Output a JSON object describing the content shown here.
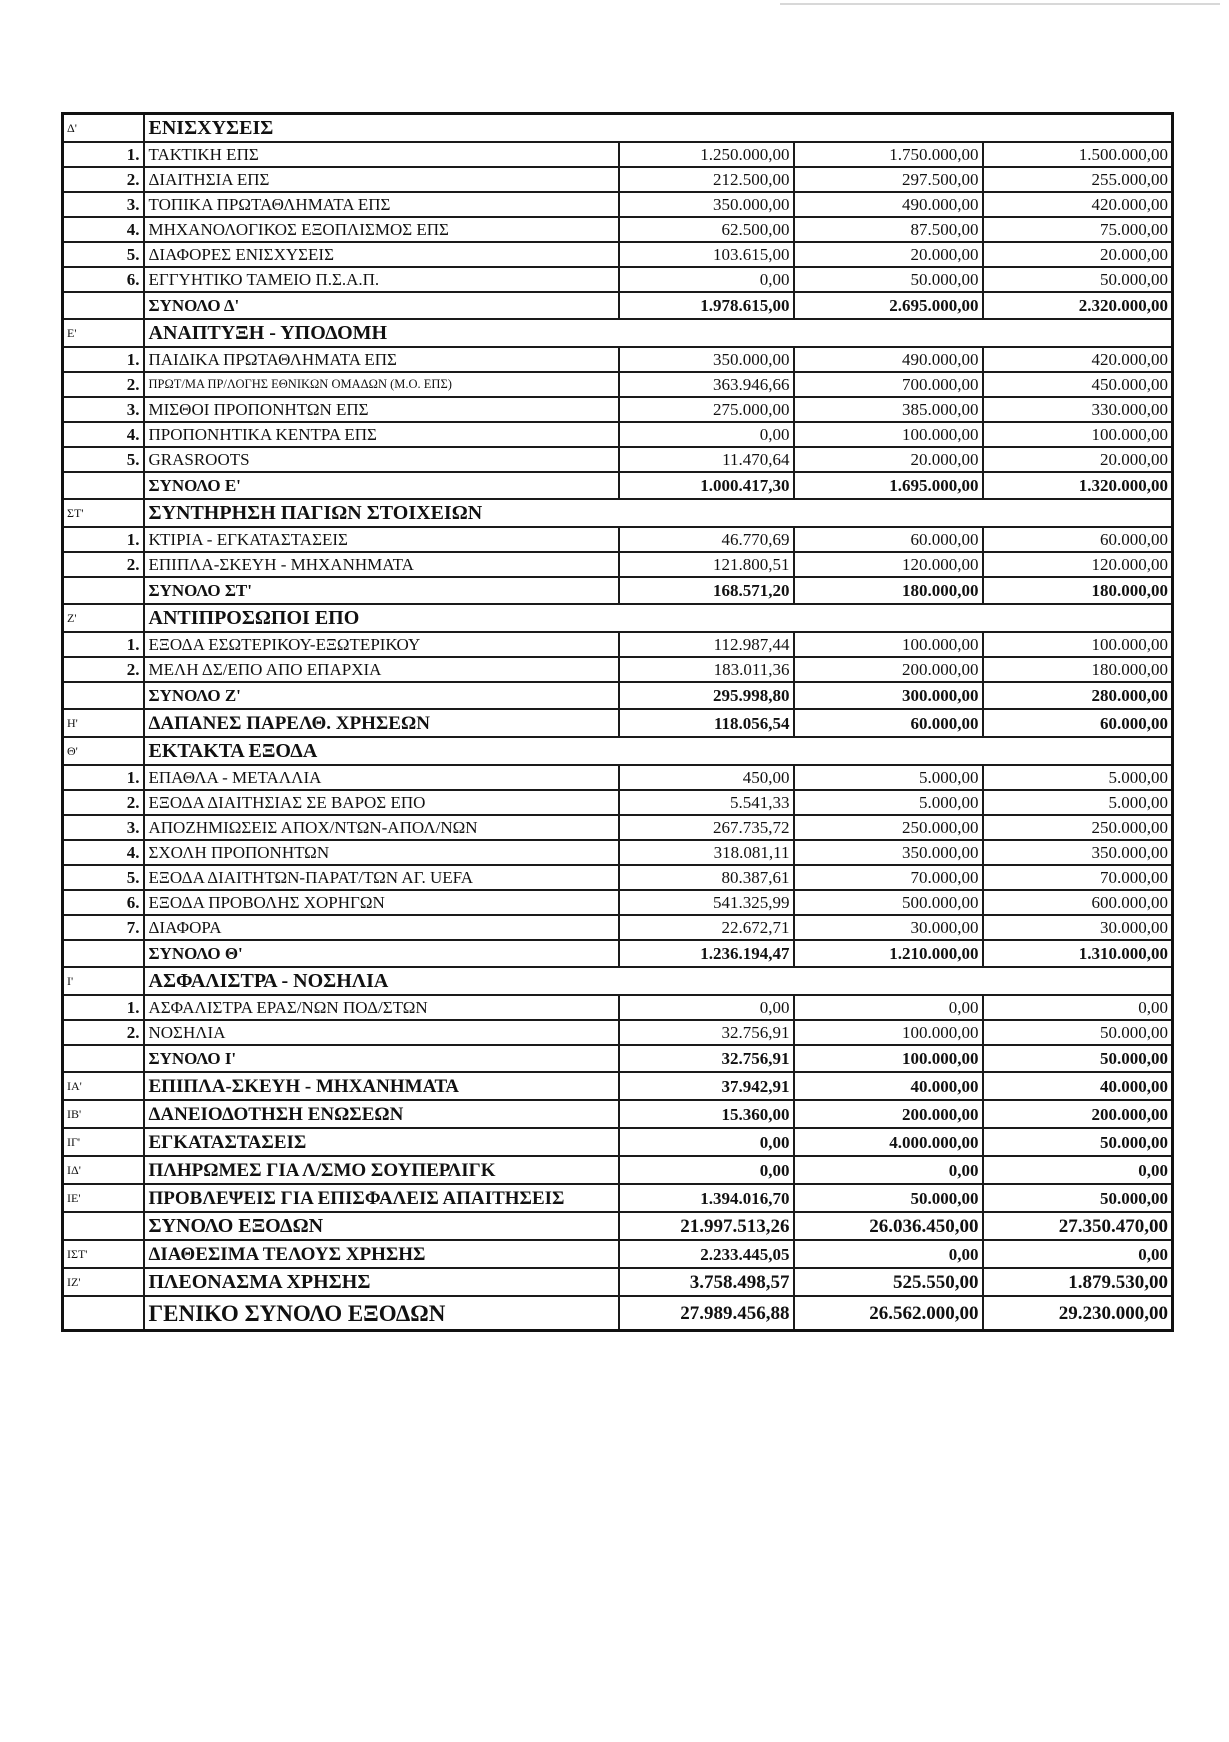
{
  "rows": [
    {
      "type": "header",
      "code": "Δ'",
      "label": "ΕΝΙΣΧΥΣΕΙΣ"
    },
    {
      "type": "item",
      "num": "1.",
      "label": "ΤΑΚΤΙΚΗ ΕΠΣ",
      "values": [
        "1.250.000,00",
        "1.750.000,00",
        "1.500.000,00"
      ]
    },
    {
      "type": "item",
      "num": "2.",
      "label": "ΔΙΑΙΤΗΣΙΑ ΕΠΣ",
      "values": [
        "212.500,00",
        "297.500,00",
        "255.000,00"
      ]
    },
    {
      "type": "item",
      "num": "3.",
      "label": "ΤΟΠΙΚΑ ΠΡΩΤΑΘΛΗΜΑΤΑ ΕΠΣ",
      "values": [
        "350.000,00",
        "490.000,00",
        "420.000,00"
      ]
    },
    {
      "type": "item",
      "num": "4.",
      "label": "ΜΗΧΑΝΟΛΟΓΙΚΟΣ ΕΞΟΠΛΙΣΜΟΣ ΕΠΣ",
      "values": [
        "62.500,00",
        "87.500,00",
        "75.000,00"
      ]
    },
    {
      "type": "item",
      "num": "5.",
      "label": "ΔΙΑΦΟΡΕΣ ΕΝΙΣΧΥΣΕΙΣ",
      "values": [
        "103.615,00",
        "20.000,00",
        "20.000,00"
      ]
    },
    {
      "type": "item",
      "num": "6.",
      "label": "ΕΓΓΥΗΤΙΚΟ ΤΑΜΕΙΟ Π.Σ.Α.Π.",
      "values": [
        "0,00",
        "50.000,00",
        "50.000,00"
      ]
    },
    {
      "type": "total",
      "label": "ΣΥΝΟΛΟ Δ'",
      "values": [
        "1.978.615,00",
        "2.695.000,00",
        "2.320.000,00"
      ]
    },
    {
      "type": "header",
      "code": "Ε'",
      "label": "ΑΝΑΠΤΥΞΗ - ΥΠΟΔΟΜΗ"
    },
    {
      "type": "item",
      "num": "1.",
      "label": "ΠΑΙΔΙΚΑ ΠΡΩΤΑΘΛΗΜΑΤΑ ΕΠΣ",
      "values": [
        "350.000,00",
        "490.000,00",
        "420.000,00"
      ]
    },
    {
      "type": "item",
      "num": "2.",
      "label": "ΠΡΩΤ/ΜΑ ΠΡ/ΛΟΓΗΣ ΕΘΝΙΚΩΝ ΟΜΑΔΩΝ (Μ.Ο. ΕΠΣ)",
      "small": true,
      "values": [
        "363.946,66",
        "700.000,00",
        "450.000,00"
      ]
    },
    {
      "type": "item",
      "num": "3.",
      "label": "ΜΙΣΘΟΙ ΠΡΟΠΟΝΗΤΩΝ ΕΠΣ",
      "values": [
        "275.000,00",
        "385.000,00",
        "330.000,00"
      ]
    },
    {
      "type": "item",
      "num": "4.",
      "label": "ΠΡΟΠΟΝΗΤΙΚΑ ΚΕΝΤΡΑ ΕΠΣ",
      "values": [
        "0,00",
        "100.000,00",
        "100.000,00"
      ]
    },
    {
      "type": "item",
      "num": "5.",
      "label": "GRASROOTS",
      "values": [
        "11.470,64",
        "20.000,00",
        "20.000,00"
      ]
    },
    {
      "type": "total",
      "label": "ΣΥΝΟΛΟ Ε'",
      "values": [
        "1.000.417,30",
        "1.695.000,00",
        "1.320.000,00"
      ]
    },
    {
      "type": "header",
      "code": "ΣΤ'",
      "label": "ΣΥΝΤΗΡΗΣΗ ΠΑΓΙΩΝ ΣΤΟΙΧΕΙΩΝ"
    },
    {
      "type": "item",
      "num": "1.",
      "label": "ΚΤΙΡΙΑ - ΕΓΚΑΤΑΣΤΑΣΕΙΣ",
      "values": [
        "46.770,69",
        "60.000,00",
        "60.000,00"
      ]
    },
    {
      "type": "item",
      "num": "2.",
      "label": "ΕΠΙΠΛΑ-ΣΚΕΥΗ - ΜΗΧΑΝΗΜΑΤΑ",
      "values": [
        "121.800,51",
        "120.000,00",
        "120.000,00"
      ]
    },
    {
      "type": "total",
      "label": "ΣΥΝΟΛΟ ΣΤ'",
      "values": [
        "168.571,20",
        "180.000,00",
        "180.000,00"
      ]
    },
    {
      "type": "header",
      "code": "Ζ'",
      "label": "ΑΝΤΙΠΡΟΣΩΠΟΙ ΕΠΟ"
    },
    {
      "type": "item",
      "num": "1.",
      "label": "ΕΞΟΔΑ ΕΣΩΤΕΡΙΚΟΥ-ΕΞΩΤΕΡΙΚΟΥ",
      "values": [
        "112.987,44",
        "100.000,00",
        "100.000,00"
      ]
    },
    {
      "type": "item",
      "num": "2.",
      "label": "ΜΕΛΗ ΔΣ/ΕΠΟ ΑΠΟ ΕΠΑΡΧΙΑ",
      "values": [
        "183.011,36",
        "200.000,00",
        "180.000,00"
      ]
    },
    {
      "type": "total",
      "label": "ΣΥΝΟΛΟ Ζ'",
      "values": [
        "295.998,80",
        "300.000,00",
        "280.000,00"
      ]
    },
    {
      "type": "major",
      "code": "Η'",
      "label": "ΔΑΠΑΝΕΣ ΠΑΡΕΛΘ. ΧΡΗΣΕΩΝ",
      "values": [
        "118.056,54",
        "60.000,00",
        "60.000,00"
      ]
    },
    {
      "type": "header",
      "code": "Θ'",
      "label": "ΕΚΤΑΚΤΑ ΕΞΟΔΑ"
    },
    {
      "type": "item",
      "num": "1.",
      "label": "ΕΠΑΘΛΑ - ΜΕΤΑΛΛΙΑ",
      "values": [
        "450,00",
        "5.000,00",
        "5.000,00"
      ]
    },
    {
      "type": "item",
      "num": "2.",
      "label": "ΕΞΟΔΑ ΔΙΑΙΤΗΣΙΑΣ ΣΕ ΒΑΡΟΣ ΕΠΟ",
      "values": [
        "5.541,33",
        "5.000,00",
        "5.000,00"
      ]
    },
    {
      "type": "item",
      "num": "3.",
      "label": "ΑΠΟΖΗΜΙΩΣΕΙΣ ΑΠΟΧ/ΝΤΩΝ-ΑΠΟΛ/ΝΩΝ",
      "values": [
        "267.735,72",
        "250.000,00",
        "250.000,00"
      ]
    },
    {
      "type": "item",
      "num": "4.",
      "label": "ΣΧΟΛΗ ΠΡΟΠΟΝΗΤΩΝ",
      "values": [
        "318.081,11",
        "350.000,00",
        "350.000,00"
      ]
    },
    {
      "type": "item",
      "num": "5.",
      "label": "ΕΞΟΔΑ ΔΙΑΙΤΗΤΩΝ-ΠΑΡΑΤ/ΤΩΝ ΑΓ. UEFA",
      "values": [
        "80.387,61",
        "70.000,00",
        "70.000,00"
      ]
    },
    {
      "type": "item",
      "num": "6.",
      "label": "ΕΞΟΔΑ ΠΡΟΒΟΛΗΣ ΧΟΡΗΓΩΝ",
      "values": [
        "541.325,99",
        "500.000,00",
        "600.000,00"
      ]
    },
    {
      "type": "item",
      "num": "7.",
      "label": "ΔΙΑΦΟΡΑ",
      "values": [
        "22.672,71",
        "30.000,00",
        "30.000,00"
      ]
    },
    {
      "type": "total",
      "label": "ΣΥΝΟΛΟ Θ'",
      "values": [
        "1.236.194,47",
        "1.210.000,00",
        "1.310.000,00"
      ]
    },
    {
      "type": "header",
      "code": "Ι'",
      "label": "ΑΣΦΑΛΙΣΤΡΑ - ΝΟΣΗΛΙΑ"
    },
    {
      "type": "item",
      "num": "1.",
      "label": "ΑΣΦΑΛΙΣΤΡΑ ΕΡΑΣ/ΝΩΝ ΠΟΔ/ΣΤΩΝ",
      "values": [
        "0,00",
        "0,00",
        "0,00"
      ]
    },
    {
      "type": "item",
      "num": "2.",
      "label": "ΝΟΣΗΛΙΑ",
      "values": [
        "32.756,91",
        "100.000,00",
        "50.000,00"
      ]
    },
    {
      "type": "total",
      "label": "ΣΥΝΟΛΟ Ι'",
      "values": [
        "32.756,91",
        "100.000,00",
        "50.000,00"
      ]
    },
    {
      "type": "major",
      "code": "ΙΑ'",
      "label": "ΕΠΙΠΛΑ-ΣΚΕΥΗ - ΜΗΧΑΝΗΜΑΤΑ",
      "values": [
        "37.942,91",
        "40.000,00",
        "40.000,00"
      ]
    },
    {
      "type": "major",
      "code": "ΙΒ'",
      "label": "ΔΑΝΕΙΟΔΟΤΗΣΗ ΕΝΩΣΕΩΝ",
      "values": [
        "15.360,00",
        "200.000,00",
        "200.000,00"
      ]
    },
    {
      "type": "major",
      "code": "ΙΓ'",
      "label": "ΕΓΚΑΤΑΣΤΑΣΕΙΣ",
      "values": [
        "0,00",
        "4.000.000,00",
        "50.000,00"
      ]
    },
    {
      "type": "major",
      "code": "ΙΔ'",
      "label": "ΠΛΗΡΩΜΕΣ ΓΙΑ Λ/ΣΜΟ ΣΟΥΠΕΡΛΙΓΚ",
      "values": [
        "0,00",
        "0,00",
        "0,00"
      ]
    },
    {
      "type": "major",
      "code": "ΙΕ'",
      "label": "ΠΡΟΒΛΕΨΕΙΣ ΓΙΑ ΕΠΙΣΦΑΛΕΙΣ ΑΠΑΙΤΗΣΕΙΣ",
      "values": [
        "1.394.016,70",
        "50.000,00",
        "50.000,00"
      ]
    },
    {
      "type": "grand",
      "label": "ΣΥΝΟΛΟ ΕΞΟΔΩΝ",
      "values": [
        "21.997.513,26",
        "26.036.450,00",
        "27.350.470,00"
      ]
    },
    {
      "type": "major",
      "code": "ΙΣΤ'",
      "label": "ΔΙΑΘΕΣΙΜΑ ΤΕΛΟΥΣ ΧΡΗΣΗΣ",
      "values": [
        "2.233.445,05",
        "0,00",
        "0,00"
      ]
    },
    {
      "type": "grand",
      "code": "ΙΖ'",
      "label": "ΠΛΕΟΝΑΣΜΑ ΧΡΗΣΗΣ",
      "values": [
        "3.758.498,57",
        "525.550,00",
        "1.879.530,00"
      ]
    },
    {
      "type": "final",
      "label": "ΓΕΝΙΚΟ ΣΥΝΟΛΟ ΕΞΟΔΩΝ",
      "values": [
        "27.989.456,88",
        "26.562.000,00",
        "29.230.000,00"
      ]
    }
  ]
}
